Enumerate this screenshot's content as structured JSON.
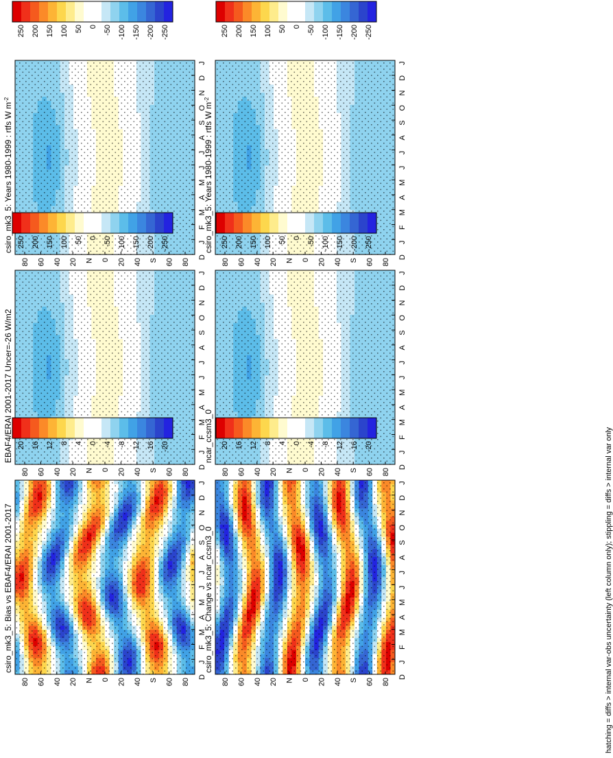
{
  "chart_data": [
    {
      "type": "heatmap",
      "title": "csiro_mk3_5: Years 1980-1999 : rtfs W m",
      "title_sup": "-2",
      "x": [
        "D",
        "J",
        "F",
        "M",
        "A",
        "M",
        "J",
        "J",
        "A",
        "S",
        "O",
        "N",
        "D",
        "J"
      ],
      "ylabels": [
        "80",
        "60",
        "40",
        "20",
        "N",
        "0",
        "20",
        "40",
        "S",
        "60",
        "80"
      ],
      "colorbar": [
        "250",
        "200",
        "150",
        "100",
        "50",
        "0",
        "-50",
        "-100",
        "-150",
        "-200",
        "-250"
      ],
      "vrange": [
        -275,
        275
      ],
      "field": "mean",
      "stipple": true
    },
    {
      "type": "heatmap",
      "title": "csiro_mk3_5: Years 1980-1999 : rtfs W m",
      "title_sup": "-2",
      "x": [
        "D",
        "J",
        "F",
        "M",
        "A",
        "M",
        "J",
        "J",
        "A",
        "S",
        "O",
        "N",
        "D",
        "J"
      ],
      "ylabels": [
        "80",
        "60",
        "40",
        "20",
        "N",
        "0",
        "20",
        "40",
        "S",
        "60",
        "80"
      ],
      "colorbar": [
        "250",
        "200",
        "150",
        "100",
        "50",
        "0",
        "-50",
        "-100",
        "-150",
        "-200",
        "-250"
      ],
      "vrange": [
        -275,
        275
      ],
      "field": "mean",
      "stipple": true
    },
    {
      "type": "heatmap",
      "title": "EBAF4/ERAI 2001-2017 Uncer=-26 W/m2",
      "title_sup": "",
      "x": [
        "D",
        "J",
        "F",
        "M",
        "A",
        "M",
        "J",
        "J",
        "A",
        "S",
        "O",
        "N",
        "D",
        "J"
      ],
      "ylabels": [
        "80",
        "60",
        "40",
        "20",
        "N",
        "0",
        "20",
        "40",
        "S",
        "60",
        "80"
      ],
      "colorbar": [
        "250",
        "200",
        "150",
        "100",
        "50",
        "0",
        "-50",
        "-100",
        "-150",
        "-200",
        "-250"
      ],
      "vrange": [
        -275,
        275
      ],
      "field": "mean",
      "stipple": true
    },
    {
      "type": "heatmap",
      "title": "ncar_ccsm3_0",
      "title_sup": "",
      "x": [
        "D",
        "J",
        "F",
        "M",
        "A",
        "M",
        "J",
        "J",
        "A",
        "S",
        "O",
        "N",
        "D",
        "J"
      ],
      "ylabels": [
        "80",
        "60",
        "40",
        "20",
        "N",
        "0",
        "20",
        "40",
        "S",
        "60",
        "80"
      ],
      "colorbar": [
        "250",
        "200",
        "150",
        "100",
        "50",
        "0",
        "-50",
        "-100",
        "-150",
        "-200",
        "-250"
      ],
      "vrange": [
        -275,
        275
      ],
      "field": "mean",
      "stipple": true
    },
    {
      "type": "heatmap",
      "title": "csiro_mk3_5: Bias vs EBAF4/ERAI 2001-2017",
      "title_sup": "",
      "x": [
        "D",
        "J",
        "F",
        "M",
        "A",
        "M",
        "J",
        "J",
        "A",
        "S",
        "O",
        "N",
        "D",
        "J"
      ],
      "ylabels": [
        "80",
        "60",
        "40",
        "20",
        "N",
        "0",
        "20",
        "40",
        "S",
        "60",
        "80"
      ],
      "colorbar": [
        "20",
        "16",
        "12",
        "8",
        "4",
        "0",
        "-4",
        "-8",
        "-12",
        "-16",
        "-20"
      ],
      "vrange": [
        -22,
        22
      ],
      "field": "bias",
      "stipple": true
    },
    {
      "type": "heatmap",
      "title": "csiro_mk3_5: Change vs ncar_ccsm3_0",
      "title_sup": "",
      "x": [
        "D",
        "J",
        "F",
        "M",
        "A",
        "M",
        "J",
        "J",
        "A",
        "S",
        "O",
        "N",
        "D",
        "J"
      ],
      "ylabels": [
        "80",
        "60",
        "40",
        "20",
        "N",
        "0",
        "20",
        "40",
        "S",
        "60",
        "80"
      ],
      "colorbar": [
        "20",
        "16",
        "12",
        "8",
        "4",
        "0",
        "-4",
        "-8",
        "-12",
        "-16",
        "-20"
      ],
      "vrange": [
        -22,
        22
      ],
      "field": "change",
      "stipple": true
    }
  ],
  "footnote": "hatching = diffs > internal var-obs uncertainty (left column only); stippling = diffs > internal var only",
  "colors": {
    "scale": [
      "#dd0000",
      "#f0301a",
      "#f55a1e",
      "#fb8a28",
      "#fdb435",
      "#fdd74d",
      "#feec8c",
      "#fffbd0",
      "#ffffff",
      "#ffffff",
      "#c6e7f6",
      "#8fd3ef",
      "#5cbde9",
      "#41a2e6",
      "#3b86df",
      "#3566d3",
      "#2b44cc",
      "#2323e0"
    ],
    "axis": "#000000"
  }
}
